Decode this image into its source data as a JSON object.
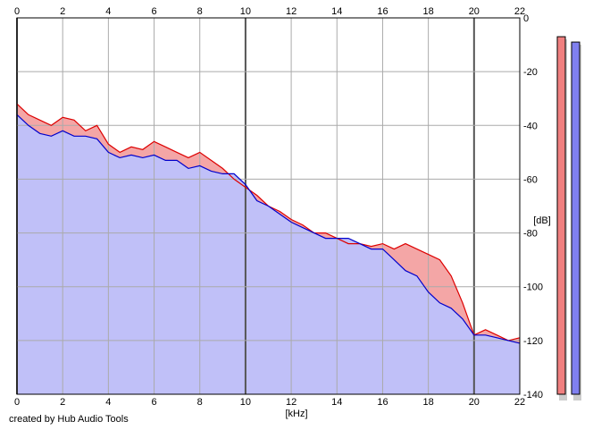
{
  "chart_data": {
    "type": "area",
    "x_unit_label": "[kHz]",
    "y_unit_label": "[dB]",
    "xlim": [
      0,
      22
    ],
    "ylim": [
      -140,
      0
    ],
    "x_ticks": [
      0,
      2,
      4,
      6,
      8,
      10,
      12,
      14,
      16,
      18,
      20,
      22
    ],
    "y_ticks": [
      0,
      -20,
      -40,
      -60,
      -80,
      -100,
      -120,
      -140
    ],
    "grid": true,
    "series": [
      {
        "color": "#dd0000",
        "fill": "#f4a6a6",
        "x": [
          0,
          0.5,
          1,
          1.5,
          2,
          2.5,
          3,
          3.5,
          4,
          4.5,
          5,
          5.5,
          6,
          6.5,
          7,
          7.5,
          8,
          8.5,
          9,
          9.5,
          10,
          10.5,
          11,
          11.5,
          12,
          12.5,
          13,
          13.5,
          14,
          14.5,
          15,
          15.5,
          16,
          16.5,
          17,
          17.5,
          18,
          18.5,
          19,
          19.5,
          20,
          20.5,
          21,
          21.5,
          22
        ],
        "y": [
          -32,
          -36,
          -38,
          -40,
          -37,
          -38,
          -42,
          -40,
          -47,
          -50,
          -48,
          -49,
          -46,
          -48,
          -50,
          -52,
          -50,
          -53,
          -56,
          -60,
          -63,
          -66,
          -70,
          -72,
          -75,
          -77,
          -80,
          -80,
          -82,
          -84,
          -84,
          -85,
          -84,
          -86,
          -84,
          -86,
          -88,
          -90,
          -96,
          -106,
          -118,
          -116,
          -118,
          -120,
          -119
        ]
      },
      {
        "color": "#0000cc",
        "fill": "#c0c0f8",
        "x": [
          0,
          0.5,
          1,
          1.5,
          2,
          2.5,
          3,
          3.5,
          4,
          4.5,
          5,
          5.5,
          6,
          6.5,
          7,
          7.5,
          8,
          8.5,
          9,
          9.5,
          10,
          10.5,
          11,
          11.5,
          12,
          12.5,
          13,
          13.5,
          14,
          14.5,
          15,
          15.5,
          16,
          16.5,
          17,
          17.5,
          18,
          18.5,
          19,
          19.5,
          20,
          20.5,
          21,
          21.5,
          22
        ],
        "y": [
          -36,
          -40,
          -43,
          -44,
          -42,
          -44,
          -44,
          -45,
          -50,
          -52,
          -51,
          -52,
          -51,
          -53,
          -53,
          -56,
          -55,
          -57,
          -58,
          -58,
          -62,
          -68,
          -70,
          -73,
          -76,
          -78,
          -80,
          -82,
          -82,
          -82,
          -84,
          -86,
          -86,
          -90,
          -94,
          -96,
          -102,
          -106,
          -108,
          -112,
          -118,
          -118,
          -119,
          -120,
          -121
        ]
      }
    ]
  },
  "level_meters": [
    {
      "color": "#f08080",
      "level_db": -7
    },
    {
      "color": "#8080f0",
      "level_db": -9
    }
  ],
  "credit": "created by Hub Audio Tools"
}
